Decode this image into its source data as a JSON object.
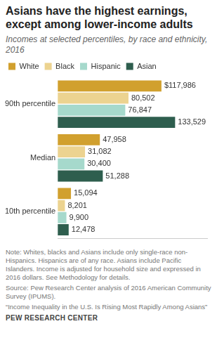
{
  "chart_data": {
    "type": "bar",
    "orientation": "horizontal",
    "title": "Asians have the highest earnings, except among lower-income adults",
    "subtitle": "Incomes at selected percentiles, by race and ethnicity, 2016",
    "categories": [
      "90th percentile",
      "Median",
      "10th percentile"
    ],
    "series": [
      {
        "name": "White",
        "color": "#d1a02e",
        "values": [
          117986,
          47958,
          15094
        ],
        "value_labels": [
          "$117,986",
          "47,958",
          "15,094"
        ]
      },
      {
        "name": "Black",
        "color": "#ecd390",
        "values": [
          80502,
          31082,
          8201
        ],
        "value_labels": [
          "80,502",
          "31,082",
          "8,201"
        ]
      },
      {
        "name": "Hispanic",
        "color": "#a6d9cc",
        "values": [
          76847,
          30400,
          9900
        ],
        "value_labels": [
          "76,847",
          "30,400",
          "9,900"
        ]
      },
      {
        "name": "Asian",
        "color": "#2e5e4e",
        "values": [
          133529,
          51288,
          12478
        ],
        "value_labels": [
          "133,529",
          "51,288",
          "12,478"
        ]
      }
    ],
    "xlim": [
      0,
      170000
    ],
    "grid": false,
    "legend": "top",
    "data_labels": true,
    "tick_labels": "y",
    "annotations": [
      "Note: Whites, blacks and Asians include only single-race non-Hispanics. Hispanics are of any race. Asians include Pacific Islanders. Income is adjusted for household size and expressed in 2016 dollars. See Methodology for details.",
      "Source: Pew Research Center analysis of 2016 American Community Survey (IPUMS).",
      "“Income Inequality in the U.S. Is Rising Most Rapidly Among Asians”",
      "PEW RESEARCH CENTER"
    ]
  }
}
